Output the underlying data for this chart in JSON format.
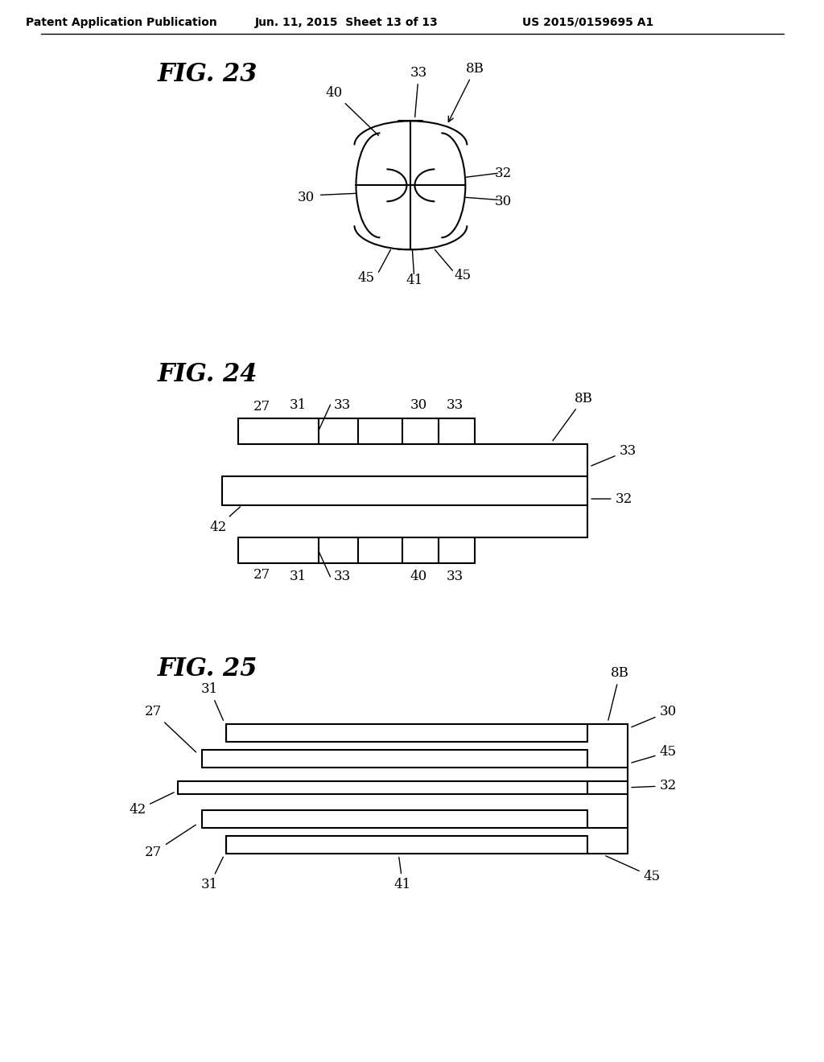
{
  "bg_color": "#ffffff",
  "header_left": "Patent Application Publication",
  "header_center": "Jun. 11, 2015  Sheet 13 of 13",
  "header_right": "US 2015/0159695 A1",
  "fig23_title": "FIG. 23",
  "fig24_title": "FIG. 24",
  "fig25_title": "FIG. 25",
  "line_color": "#000000",
  "line_width": 1.5,
  "text_color": "#000000"
}
